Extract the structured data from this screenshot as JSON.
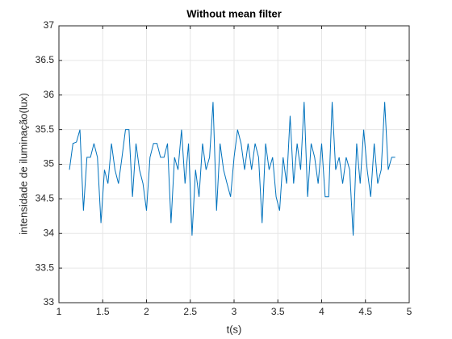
{
  "chart_data": {
    "type": "line",
    "title": "Without mean filter",
    "x_label": "t(s)",
    "y_label": "intensidade de iluminação(lux)",
    "xlim": [
      1,
      5
    ],
    "ylim": [
      33,
      37
    ],
    "xticks": [
      1,
      1.5,
      2,
      2.5,
      3,
      3.5,
      4,
      4.5,
      5
    ],
    "yticks": [
      33,
      33.5,
      34,
      34.5,
      35,
      35.5,
      36,
      36.5,
      37
    ],
    "grid": true,
    "x": [
      1.12,
      1.16,
      1.2,
      1.24,
      1.28,
      1.32,
      1.36,
      1.4,
      1.44,
      1.48,
      1.52,
      1.56,
      1.6,
      1.64,
      1.68,
      1.72,
      1.76,
      1.8,
      1.84,
      1.88,
      1.92,
      1.96,
      2,
      2.04,
      2.08,
      2.12,
      2.16,
      2.2,
      2.24,
      2.28,
      2.32,
      2.36,
      2.4,
      2.44,
      2.48,
      2.52,
      2.56,
      2.6,
      2.64,
      2.68,
      2.72,
      2.76,
      2.8,
      2.84,
      2.88,
      2.92,
      2.96,
      3,
      3.04,
      3.08,
      3.12,
      3.16,
      3.2,
      3.24,
      3.28,
      3.32,
      3.36,
      3.4,
      3.44,
      3.48,
      3.52,
      3.56,
      3.6,
      3.64,
      3.68,
      3.72,
      3.76,
      3.8,
      3.84,
      3.88,
      3.92,
      3.96,
      4,
      4.04,
      4.08,
      4.12,
      4.16,
      4.2,
      4.24,
      4.28,
      4.32,
      4.36,
      4.4,
      4.44,
      4.48,
      4.52,
      4.56,
      4.6,
      4.64,
      4.68,
      4.72,
      4.76,
      4.8,
      4.84
    ],
    "series": [
      {
        "color": "#0072bd",
        "values": [
          34.92,
          35.3,
          35.32,
          35.5,
          34.33,
          35.1,
          35.1,
          35.3,
          35.1,
          34.15,
          34.92,
          34.72,
          35.3,
          34.92,
          34.72,
          35.1,
          35.5,
          35.5,
          34.53,
          35.3,
          34.92,
          34.72,
          34.33,
          35.1,
          35.3,
          35.3,
          35.1,
          35.1,
          35.3,
          34.15,
          35.1,
          34.92,
          35.5,
          34.72,
          35.3,
          33.97,
          34.92,
          34.53,
          35.3,
          34.92,
          35.1,
          35.9,
          34.33,
          35.3,
          34.92,
          34.72,
          34.53,
          35.1,
          35.5,
          35.3,
          34.92,
          35.3,
          34.92,
          35.3,
          35.1,
          34.15,
          35.3,
          34.92,
          35.1,
          34.53,
          34.33,
          35.1,
          34.72,
          35.7,
          34.72,
          35.3,
          34.92,
          35.9,
          34.53,
          35.3,
          35.1,
          34.72,
          35.3,
          34.53,
          34.53,
          35.9,
          34.92,
          35.1,
          34.72,
          35.1,
          34.92,
          33.97,
          35.3,
          34.72,
          35.5,
          34.92,
          34.53,
          35.3,
          34.72,
          34.92,
          35.9,
          34.92,
          35.1,
          35.1
        ]
      }
    ]
  }
}
